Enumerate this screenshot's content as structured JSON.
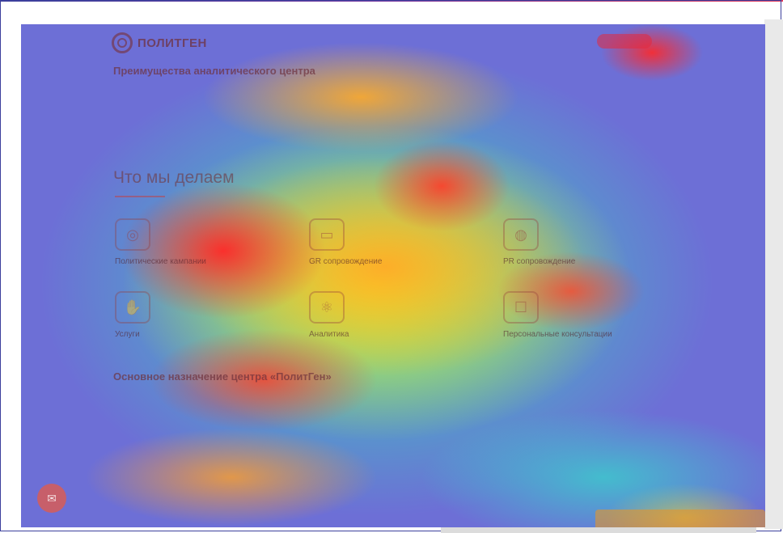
{
  "logo": {
    "text": "ПОЛИТГЕН"
  },
  "sections": {
    "advantages_title": "Преимущества аналитического центра",
    "what_we_do_title": "Что мы делаем",
    "purpose_title": "Основное назначение центра «ПолитГен»"
  },
  "services": [
    {
      "label": "Политические кампании",
      "icon": "target-icon"
    },
    {
      "label": "GR сопровождение",
      "icon": "briefcase-icon"
    },
    {
      "label": "PR сопровождение",
      "icon": "satellite-icon"
    },
    {
      "label": "Услуги",
      "icon": "handshake-icon"
    },
    {
      "label": "Аналитика",
      "icon": "atom-icon"
    },
    {
      "label": "Персональные консультации",
      "icon": "chat-icon"
    }
  ],
  "colors": {
    "frame": "#3b3f9c",
    "heat_cold": "#6d6fd6",
    "heat_hot": "#ff2828"
  }
}
